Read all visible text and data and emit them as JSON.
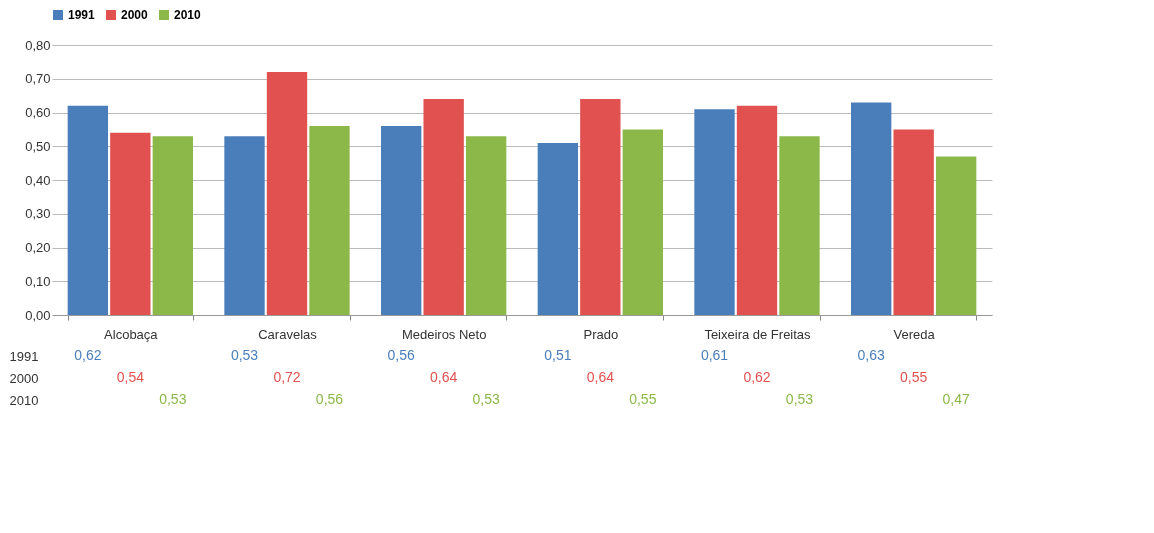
{
  "chart_data": {
    "type": "bar",
    "categories": [
      "Alcobaça",
      "Caravelas",
      "Medeiros Neto",
      "Prado",
      "Teixeira de Freitas",
      "Vereda"
    ],
    "series": [
      {
        "name": "1991",
        "color": "#4a7ebb",
        "values": [
          0.62,
          0.53,
          0.56,
          0.51,
          0.61,
          0.63
        ],
        "value_labels": [
          "0,62",
          "0,53",
          "0,56",
          "0,51",
          "0,61",
          "0,63"
        ]
      },
      {
        "name": "2000",
        "color": "#e0514f",
        "values": [
          0.54,
          0.72,
          0.64,
          0.64,
          0.62,
          0.55
        ],
        "value_labels": [
          "0,54",
          "0,72",
          "0,64",
          "0,64",
          "0,62",
          "0,55"
        ]
      },
      {
        "name": "2010",
        "color": "#8bb849",
        "values": [
          0.53,
          0.56,
          0.53,
          0.55,
          0.53,
          0.47
        ],
        "value_labels": [
          "0,53",
          "0,56",
          "0,53",
          "0,55",
          "0,53",
          "0,47"
        ]
      }
    ],
    "ylim": [
      0,
      0.8
    ],
    "yticks": [
      {
        "value": 0,
        "label": "0,00"
      },
      {
        "value": 0.1,
        "label": "0,10"
      },
      {
        "value": 0.2,
        "label": "0,20"
      },
      {
        "value": 0.3,
        "label": "0,30"
      },
      {
        "value": 0.4,
        "label": "0,40"
      },
      {
        "value": 0.5,
        "label": "0,50"
      },
      {
        "value": 0.6,
        "label": "0,60"
      },
      {
        "value": 0.7,
        "label": "0,70"
      },
      {
        "value": 0.8,
        "label": "0,80"
      }
    ],
    "grid": "y",
    "legend": "top"
  }
}
